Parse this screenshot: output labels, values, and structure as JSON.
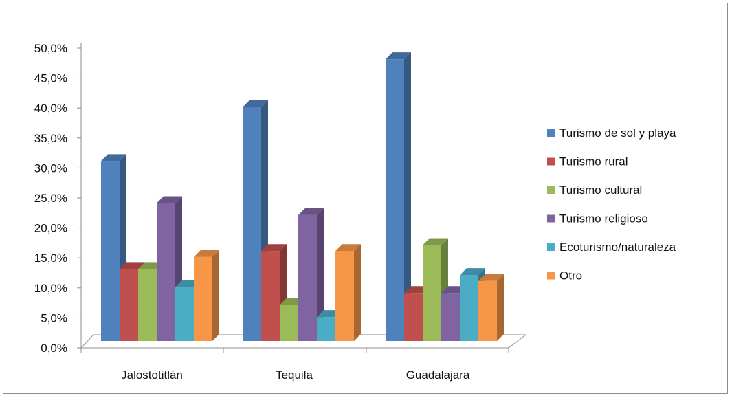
{
  "chart_data": {
    "type": "bar",
    "categories": [
      "Jalostotitlán",
      "Tequila",
      "Guadalajara"
    ],
    "series": [
      {
        "name": "Turismo de sol y playa",
        "values": [
          30.0,
          39.0,
          47.0
        ],
        "color": "#4F81BD"
      },
      {
        "name": "Turismo rural",
        "values": [
          12.0,
          15.0,
          8.0
        ],
        "color": "#C0504D"
      },
      {
        "name": "Turismo cultural",
        "values": [
          12.0,
          6.0,
          16.0
        ],
        "color": "#9BBB59"
      },
      {
        "name": "Turismo religioso",
        "values": [
          23.0,
          21.0,
          8.0
        ],
        "color": "#8064A2"
      },
      {
        "name": "Ecoturismo/naturaleza",
        "values": [
          9.0,
          4.0,
          11.0
        ],
        "color": "#4BACC6"
      },
      {
        "name": "Otro",
        "values": [
          14.0,
          15.0,
          10.0
        ],
        "color": "#F79646"
      }
    ],
    "ylim": [
      0,
      50
    ],
    "yticks": [
      "0,0%",
      "5,0%",
      "10,0%",
      "15,0%",
      "20,0%",
      "25,0%",
      "30,0%",
      "35,0%",
      "40,0%",
      "45,0%",
      "50,0%"
    ],
    "legend_position": "right",
    "grid": false,
    "style": "3d-clustered-column"
  }
}
